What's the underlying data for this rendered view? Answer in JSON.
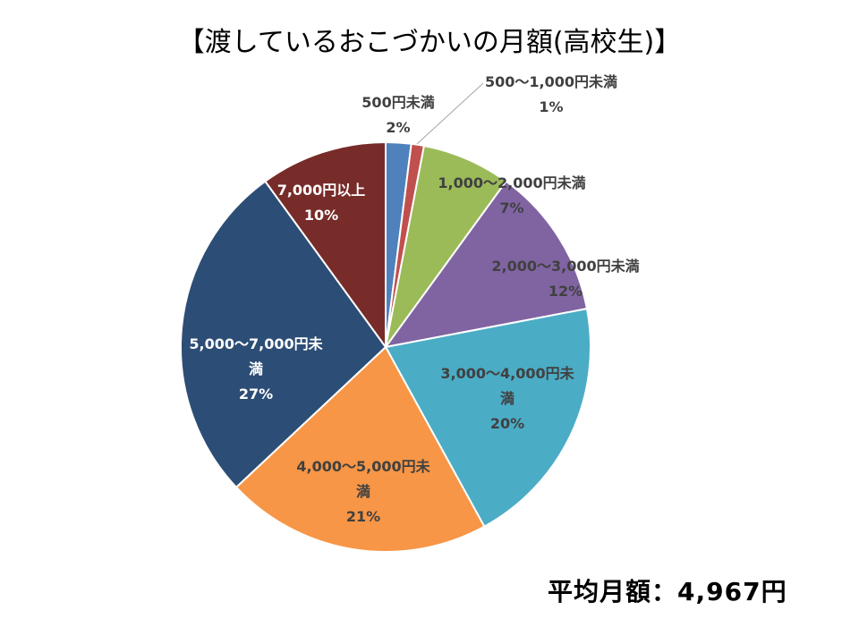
{
  "chart_data": {
    "type": "pie",
    "title": "【渡しているおこづかいの月額(高校生)】",
    "start_angle": "top",
    "direction": "clockwise",
    "slices": [
      {
        "label": "500円未満",
        "value": 2,
        "pct": "2%",
        "color": "#4F81BD"
      },
      {
        "label": "500～1,000円未満",
        "value": 1,
        "pct": "1%",
        "color": "#C0504D"
      },
      {
        "label": "1,000～2,000円未満",
        "value": 7,
        "pct": "7%",
        "color": "#9BBB59"
      },
      {
        "label": "2,000～3,000円未満",
        "value": 12,
        "pct": "12%",
        "color": "#8064A2"
      },
      {
        "label": "3,000～4,000円未満",
        "value": 20,
        "pct": "20%",
        "color": "#4BACC6"
      },
      {
        "label": "4,000～5,000円未満",
        "value": 21,
        "pct": "21%",
        "color": "#F79646"
      },
      {
        "label": "5,000～7,000円未満",
        "value": 27,
        "pct": "27%",
        "color": "#2C4D75"
      },
      {
        "label": "7,000円以上",
        "value": 10,
        "pct": "10%",
        "color": "#772C2A"
      }
    ],
    "annotation": "平均月額：4,967円"
  }
}
